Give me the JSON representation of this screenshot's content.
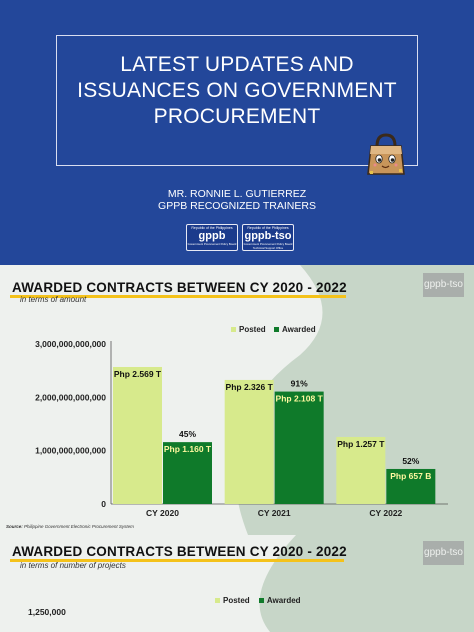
{
  "slide1": {
    "title_lines": [
      "LATEST UPDATES AND",
      "ISSUANCES ON GOVERNMENT",
      "PROCUREMENT"
    ],
    "presenter_name": "MR. RONNIE L. GUTIERREZ",
    "presenter_role": "GPPB RECOGNIZED TRAINERS",
    "logos": [
      {
        "top": "Republic of the Philippines",
        "name": "gppb",
        "sub": "Government Procurement Policy Board"
      },
      {
        "top": "Republic of the Philippines",
        "name": "gppb-tso",
        "sub": "Government Procurement Policy Board Technical Support Office"
      }
    ],
    "colors": {
      "background": "#23479a",
      "text": "#ffffff"
    }
  },
  "slide2": {
    "title": "AWARDED CONTRACTS BETWEEN CY 2020 - 2022",
    "subtitle": "in terms of amount",
    "watermark": "gppb-tso",
    "source_label": "Source:",
    "source_text": "Philippine Government Electronic Procurement System",
    "chart_data": {
      "type": "bar",
      "categories": [
        "CY 2020",
        "CY 2021",
        "CY 2022"
      ],
      "series": [
        {
          "name": "Posted",
          "values": [
            2569000000000,
            2326000000000,
            1257000000000
          ],
          "labels": [
            "Php 2.569 T",
            "Php 2.326 T",
            "Php 1.257 T"
          ],
          "color": "#d7ea8c"
        },
        {
          "name": "Awarded",
          "values": [
            1160000000000,
            2108000000000,
            657000000000
          ],
          "labels": [
            "Php 1.160 T",
            "Php 2.108 T",
            "Php 657 B"
          ],
          "color": "#0f7a2a"
        }
      ],
      "percent_labels": [
        "45%",
        "91%",
        "52%"
      ],
      "yticks": [
        0,
        1000000000000,
        2000000000000,
        3000000000000
      ],
      "ytick_labels": [
        "0",
        "1,000,000,000,000",
        "2,000,000,000,000",
        "3,000,000,000,000"
      ],
      "ylim": [
        0,
        3000000000000
      ],
      "legend_position": "top-right",
      "grid": false
    }
  },
  "slide3": {
    "title": "AWARDED CONTRACTS BETWEEN CY 2020 - 2022",
    "subtitle": "in terms of number of projects",
    "watermark": "gppb-tso",
    "legend": [
      "Posted",
      "Awarded"
    ],
    "ytick_label": "1,250,000"
  }
}
